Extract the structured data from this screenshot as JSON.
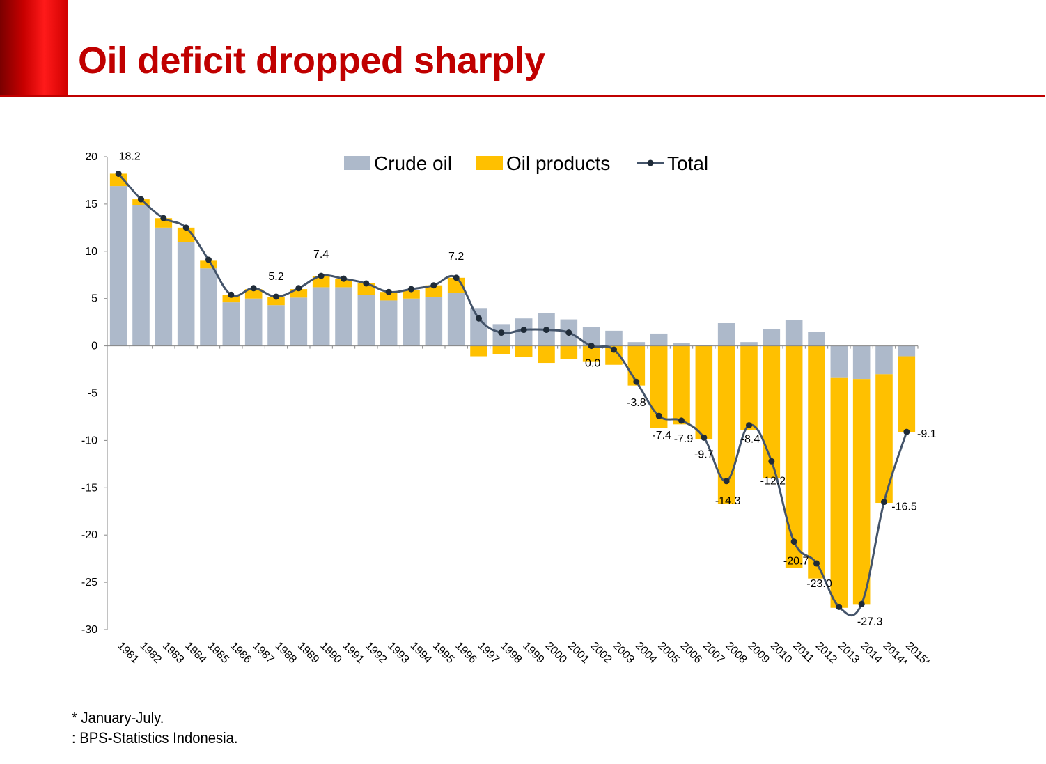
{
  "slide": {
    "title": "Oil deficit dropped sharply",
    "footnote": "* January-July.",
    "source": ": BPS-Statistics Indonesia."
  },
  "colors": {
    "title": "#c00000",
    "crude": "#adb9ca",
    "products": "#ffc000",
    "total": "#44546a"
  },
  "chart_data": {
    "type": "bar",
    "stacked": true,
    "title": "",
    "xlabel": "",
    "ylabel": "",
    "ylim": [
      -30,
      20
    ],
    "yticks": [
      20,
      15,
      10,
      5,
      0,
      -5,
      -10,
      -15,
      -20,
      -25,
      -30
    ],
    "legend_position": "top-center",
    "categories": [
      "1981",
      "1982",
      "1983",
      "1984",
      "1985",
      "1986",
      "1987",
      "1988",
      "1989",
      "1990",
      "1991",
      "1992",
      "1993",
      "1994",
      "1995",
      "1996",
      "1997",
      "1998",
      "1999",
      "2000",
      "2001",
      "2002",
      "2003",
      "2004",
      "2005",
      "2006",
      "2007",
      "2008",
      "2009",
      "2010",
      "2011",
      "2012",
      "2013",
      "2014",
      "2014*",
      "2015*"
    ],
    "series": [
      {
        "name": "Crude oil",
        "kind": "bar",
        "values": [
          16.9,
          14.9,
          12.5,
          11.0,
          8.2,
          4.6,
          5.0,
          4.3,
          5.1,
          6.2,
          6.2,
          5.4,
          4.8,
          5.0,
          5.2,
          5.6,
          4.0,
          2.3,
          2.9,
          3.5,
          2.8,
          2.0,
          1.6,
          0.4,
          1.3,
          0.3,
          0.1,
          2.4,
          0.4,
          1.8,
          2.7,
          1.5,
          -3.4,
          -3.5,
          -3.0,
          -1.1
        ]
      },
      {
        "name": "Oil products",
        "kind": "bar",
        "values": [
          1.3,
          0.6,
          1.0,
          1.5,
          0.8,
          0.8,
          1.0,
          0.9,
          0.9,
          1.2,
          0.9,
          1.2,
          0.9,
          0.9,
          1.2,
          1.6,
          -1.1,
          -0.9,
          -1.2,
          -1.8,
          -1.4,
          -1.7,
          -2.0,
          -4.2,
          -8.7,
          -8.3,
          -9.9,
          -16.7,
          -8.9,
          -14.0,
          -23.5,
          -24.6,
          -24.3,
          -23.8,
          -13.6,
          -8.0
        ]
      },
      {
        "name": "Total",
        "kind": "line",
        "values": [
          18.2,
          15.5,
          13.5,
          12.5,
          9.1,
          5.4,
          6.1,
          5.2,
          6.1,
          7.4,
          7.1,
          6.6,
          5.7,
          6.0,
          6.4,
          7.2,
          2.9,
          1.4,
          1.7,
          1.7,
          1.4,
          0.0,
          -0.4,
          -3.8,
          -7.4,
          -7.9,
          -9.7,
          -14.3,
          -8.4,
          -12.2,
          -20.7,
          -23.0,
          -27.6,
          -27.3,
          -16.5,
          -9.1
        ]
      }
    ],
    "data_labels": [
      {
        "index": 0,
        "text": "18.2"
      },
      {
        "index": 7,
        "text": "5.2"
      },
      {
        "index": 9,
        "text": "7.4"
      },
      {
        "index": 15,
        "text": "7.2"
      },
      {
        "index": 21,
        "text": "0.0"
      },
      {
        "index": 23,
        "text": "-3.8"
      },
      {
        "index": 24,
        "text": "-7.4"
      },
      {
        "index": 25,
        "text": "-7.9"
      },
      {
        "index": 26,
        "text": "-9.7"
      },
      {
        "index": 27,
        "text": "-14.3"
      },
      {
        "index": 28,
        "text": "-8.4"
      },
      {
        "index": 29,
        "text": "-12.2"
      },
      {
        "index": 30,
        "text": "-20.7"
      },
      {
        "index": 31,
        "text": "-23.0"
      },
      {
        "index": 33,
        "text": "-27.3"
      },
      {
        "index": 34,
        "text": "-16.5"
      },
      {
        "index": 35,
        "text": "-9.1"
      }
    ]
  }
}
